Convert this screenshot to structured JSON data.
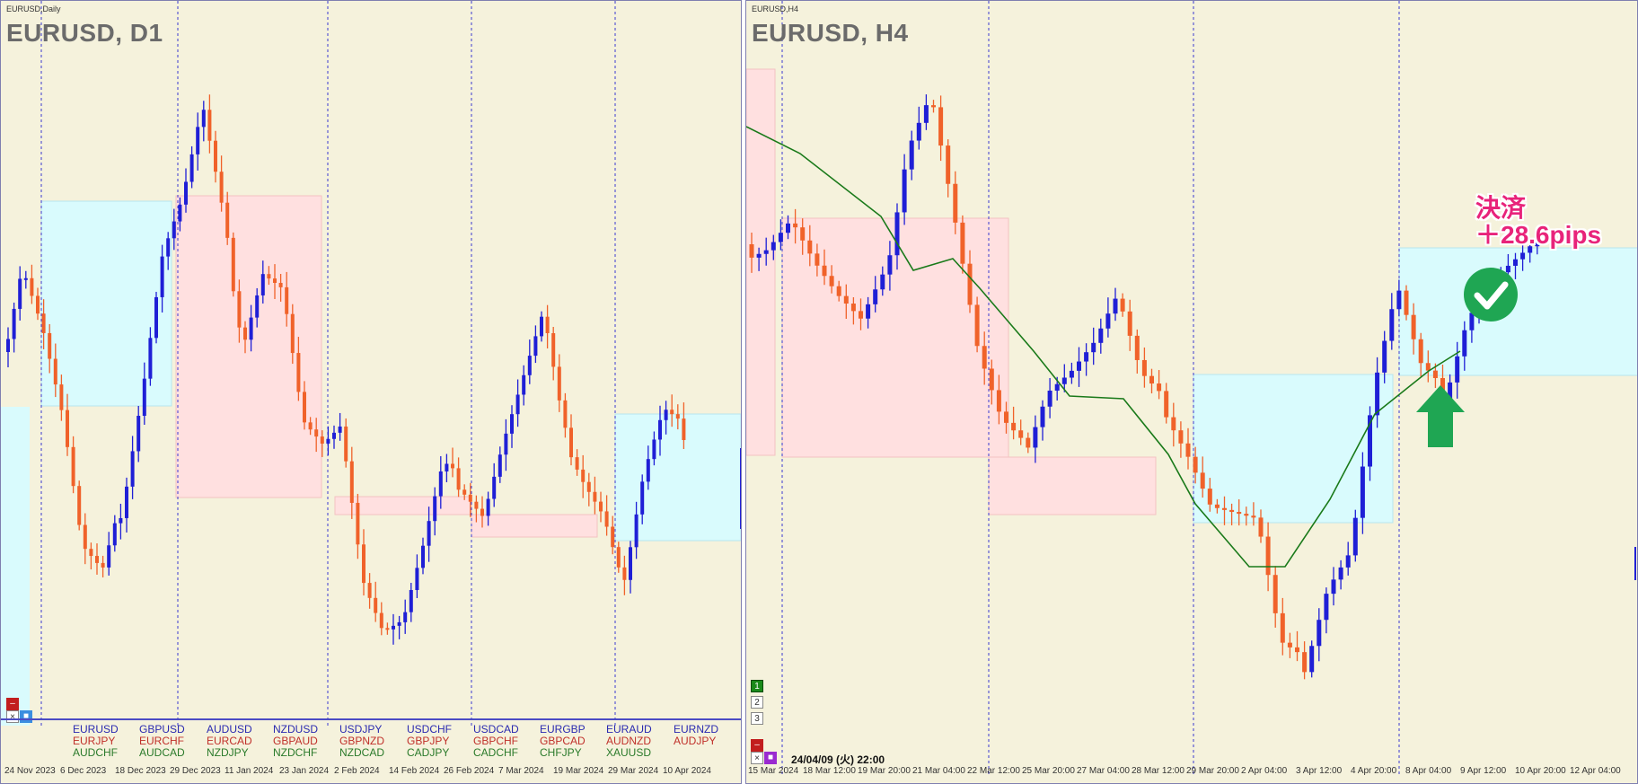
{
  "left": {
    "caption": "EURUSD,Daily",
    "title": "EURUSD, D1",
    "watchlist": [
      [
        "EURUSD",
        "EURJPY",
        "AUDCHF"
      ],
      [
        "GBPUSD",
        "EURCHF",
        "AUDCAD"
      ],
      [
        "AUDUSD",
        "EURCAD",
        "NZDJPY"
      ],
      [
        "NZDUSD",
        "GBPAUD",
        "NZDCHF"
      ],
      [
        "USDJPY",
        "GBPNZD",
        "NZDCAD"
      ],
      [
        "USDCHF",
        "GBPJPY",
        "CADJPY"
      ],
      [
        "USDCAD",
        "GBPCHF",
        "CADCHF"
      ],
      [
        "EURGBP",
        "GBPCAD",
        "CHFJPY"
      ],
      [
        "EURAUD",
        "AUDNZD",
        "XAUUSD"
      ],
      [
        "EURNZD",
        "AUDJPY",
        ""
      ]
    ],
    "dates": [
      "24 Nov 2023",
      "6 Dec 2023",
      "18 Dec 2023",
      "29 Dec 2023",
      "11 Jan 2024",
      "23 Jan 2024",
      "2 Feb 2024",
      "14 Feb 2024",
      "26 Feb 2024",
      "7 Mar 2024",
      "19 Mar 2024",
      "29 Mar 2024",
      "10 Apr 2024"
    ]
  },
  "right": {
    "caption": "EURUSD,H4",
    "title": "EURUSD, H4",
    "timestamp": "24/04/09 (火) 22:00",
    "annotation_line1": "決済",
    "annotation_line2": "＋28.6pips",
    "tabs": [
      "1",
      "2",
      "3"
    ],
    "dates": [
      "15 Mar 2024",
      "18 Mar 12:00",
      "19 Mar 20:00",
      "21 Mar 04:00",
      "22 Mar 12:00",
      "25 Mar 20:00",
      "27 Mar 04:00",
      "28 Mar 12:00",
      "29 Mar 20:00",
      "2 Apr 04:00",
      "3 Apr 12:00",
      "4 Apr 20:00",
      "8 Apr 04:00",
      "9 Apr 12:00",
      "10 Apr 20:00",
      "12 Apr 04:00"
    ]
  },
  "colors": {
    "background": "#f5f2dc",
    "bull": "#1f1fd6",
    "bear": "#f0622a",
    "demand_zone": "#d9fbfd",
    "supply_zone": "#ffe0e0",
    "ma": "#1a7a1a",
    "check": "#1fa653",
    "arrow": "#1fa653"
  },
  "icons": [
    "check-circle-icon",
    "up-arrow-icon",
    "close-icon",
    "minimize-icon"
  ]
}
